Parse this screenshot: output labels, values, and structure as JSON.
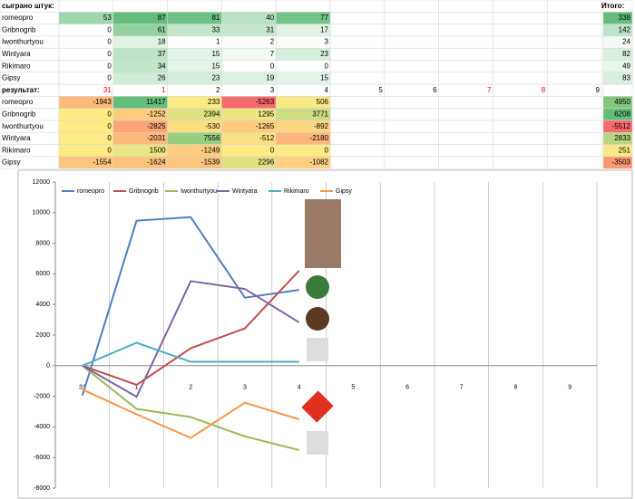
{
  "played": {
    "title": "сыграно штук:",
    "total_title": "Итого:",
    "rows": [
      {
        "name": "romeopro",
        "values": [
          53,
          87,
          81,
          40,
          77
        ],
        "total": 338
      },
      {
        "name": "Gribnogrib",
        "values": [
          0,
          61,
          33,
          31,
          17
        ],
        "total": 142
      },
      {
        "name": "Iwonthurtyou",
        "values": [
          0,
          18,
          1,
          2,
          3
        ],
        "total": 24
      },
      {
        "name": "Wintyara",
        "values": [
          0,
          37,
          15,
          7,
          23
        ],
        "total": 82
      },
      {
        "name": "Rikimaro",
        "values": [
          0,
          34,
          15,
          0,
          0
        ],
        "total": 49
      },
      {
        "name": "Gipsy",
        "values": [
          0,
          26,
          23,
          19,
          15
        ],
        "total": 83
      }
    ]
  },
  "results": {
    "title": "результат:",
    "rounds": [
      "31",
      "1",
      "2",
      "3",
      "4",
      "5",
      "6",
      "7",
      "8",
      "9"
    ],
    "round_colors": [
      "#ff0000",
      "#ff0000",
      "#000000",
      "#000000",
      "#000000",
      "#000000",
      "#000000",
      "#ff0000",
      "#ff0000",
      "#000000"
    ],
    "rows": [
      {
        "name": "romeopro",
        "values": [
          -1943,
          11417,
          233,
          -5263,
          506
        ],
        "total": 4950
      },
      {
        "name": "Gribnogrib",
        "values": [
          0,
          -1252,
          2394,
          1295,
          3771
        ],
        "total": 6208
      },
      {
        "name": "Iwonthurtyou",
        "values": [
          0,
          -2825,
          -530,
          -1265,
          -892
        ],
        "total": -5512
      },
      {
        "name": "Wintyara",
        "values": [
          0,
          -2031,
          7556,
          -512,
          -2180
        ],
        "total": 2833
      },
      {
        "name": "Rikimaro",
        "values": [
          0,
          1500,
          -1249,
          0,
          0
        ],
        "total": 251
      },
      {
        "name": "Gipsy",
        "values": [
          -1554,
          -1624,
          -1539,
          2296,
          -1082
        ],
        "total": -3503
      }
    ]
  },
  "chart_data": {
    "type": "line",
    "categories": [
      "31",
      "1",
      "2",
      "3",
      "4",
      "5",
      "6",
      "7",
      "8",
      "9"
    ],
    "series": [
      {
        "name": "romeopro",
        "color": "#4f81bd",
        "values": [
          -1943,
          9474,
          9707,
          4444,
          4950,
          null,
          null,
          null,
          null,
          null
        ]
      },
      {
        "name": "Gribnogrib",
        "color": "#c0504d",
        "values": [
          0,
          -1252,
          1142,
          2437,
          6208,
          null,
          null,
          null,
          null,
          null
        ]
      },
      {
        "name": "Iwonthurtyou",
        "color": "#9bbb59",
        "values": [
          0,
          -2825,
          -3355,
          -4620,
          -5512,
          null,
          null,
          null,
          null,
          null
        ]
      },
      {
        "name": "Wintyara",
        "color": "#8064a2",
        "values": [
          0,
          -2031,
          5525,
          5013,
          2833,
          null,
          null,
          null,
          null,
          null
        ]
      },
      {
        "name": "Rikimaro",
        "color": "#4bacc6",
        "values": [
          0,
          1500,
          251,
          251,
          251,
          null,
          null,
          null,
          null,
          null
        ]
      },
      {
        "name": "Gipsy",
        "color": "#f79646",
        "values": [
          -1554,
          -3178,
          -4717,
          -2421,
          -3503,
          null,
          null,
          null,
          null,
          null
        ]
      }
    ],
    "ylim": [
      -8000,
      12000
    ],
    "yticks": [
      -8000,
      -6000,
      -4000,
      -2000,
      0,
      2000,
      4000,
      6000,
      8000,
      10000,
      12000
    ],
    "grid": true,
    "legend": "top"
  }
}
